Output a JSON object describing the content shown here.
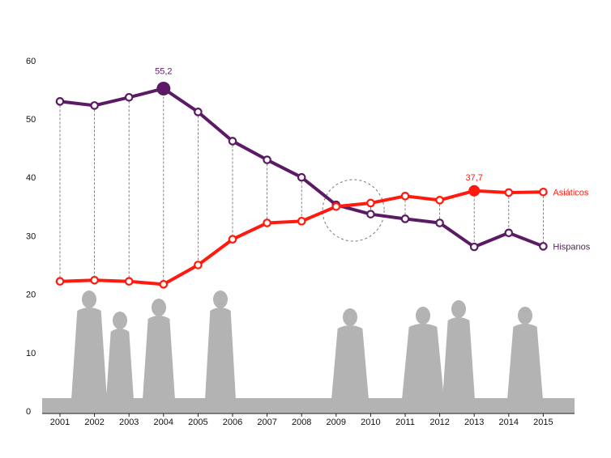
{
  "chart_data": {
    "type": "line",
    "title": "",
    "xlabel": "",
    "ylabel": "",
    "x": [
      "2001",
      "2002",
      "2003",
      "2004",
      "2005",
      "2006",
      "2007",
      "2008",
      "2009",
      "2010",
      "2011",
      "2012",
      "2013",
      "2014",
      "2015"
    ],
    "ylim": [
      0,
      60
    ],
    "yticks": [
      "0",
      "10",
      "20",
      "30",
      "40",
      "50",
      "60"
    ],
    "grid": false,
    "series": [
      {
        "name": "Hispanos",
        "color": "#5c1a66",
        "values": [
          53.0,
          52.3,
          53.7,
          55.2,
          51.2,
          46.2,
          43.0,
          40.0,
          35.3,
          33.7,
          32.9,
          32.2,
          28.1,
          30.5,
          28.2
        ]
      },
      {
        "name": "Asiáticos",
        "color": "#ff1a0d",
        "values": [
          22.2,
          22.4,
          22.2,
          21.7,
          25.0,
          29.4,
          32.2,
          32.5,
          35.0,
          35.6,
          36.8,
          36.1,
          37.7,
          37.4,
          37.5
        ]
      }
    ],
    "annotations": [
      {
        "series": 0,
        "index": 3,
        "text": "55,2"
      },
      {
        "series": 1,
        "index": 12,
        "text": "37,7"
      }
    ],
    "highlight_index": 8.5
  }
}
